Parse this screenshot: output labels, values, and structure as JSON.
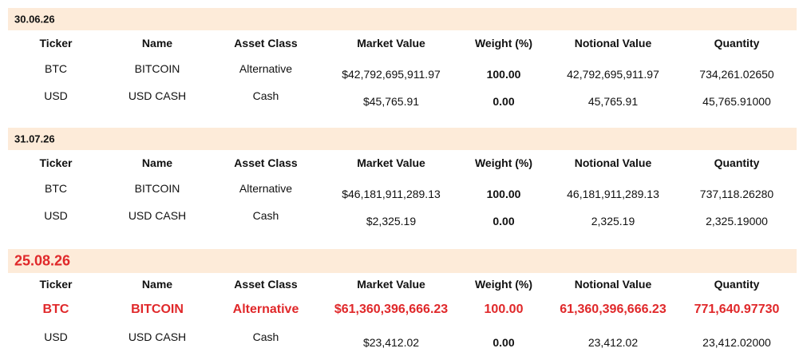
{
  "sections": [
    {
      "date": "30.06.26",
      "headers": [
        "Ticker",
        "Name",
        "Asset Class",
        "Market Value",
        "Weight (%)",
        "Notional Value",
        "Quantity"
      ],
      "rows": [
        {
          "cells": [
            "BTC",
            "BITCOIN",
            "Alternative",
            "$42,792,695,911.97",
            "100.00",
            "42,792,695,911.97",
            "734,261.02650"
          ]
        },
        {
          "cells": [
            "USD",
            "USD CASH",
            "Cash",
            "$45,765.91",
            "0.00",
            "45,765.91",
            "45,765.91000"
          ]
        }
      ]
    },
    {
      "date": "31.07.26",
      "headers": [
        "Ticker",
        "Name",
        "Asset Class",
        "Market Value",
        "Weight (%)",
        "Notional Value",
        "Quantity"
      ],
      "rows": [
        {
          "cells": [
            "BTC",
            "BITCOIN",
            "Alternative",
            "$46,181,911,289.13",
            "100.00",
            "46,181,911,289.13",
            "737,118.26280"
          ]
        },
        {
          "cells": [
            "USD",
            "USD CASH",
            "Cash",
            "$2,325.19",
            "0.00",
            "2,325.19",
            "2,325.19000"
          ]
        }
      ]
    },
    {
      "date": "25.08.26",
      "highlight": true,
      "headers": [
        "Ticker",
        "Name",
        "Asset Class",
        "Market Value",
        "Weight (%)",
        "Notional Value",
        "Quantity"
      ],
      "rows": [
        {
          "cells": [
            "BTC",
            "BITCOIN",
            "Alternative",
            "$61,360,396,666.23",
            "100.00",
            "61,360,396,666.23",
            "771,640.97730"
          ],
          "highlight": true
        },
        {
          "cells": [
            "USD",
            "USD CASH",
            "Cash",
            "$23,412.02",
            "0.00",
            "23,412.02",
            "23,412.02000"
          ]
        }
      ]
    }
  ]
}
